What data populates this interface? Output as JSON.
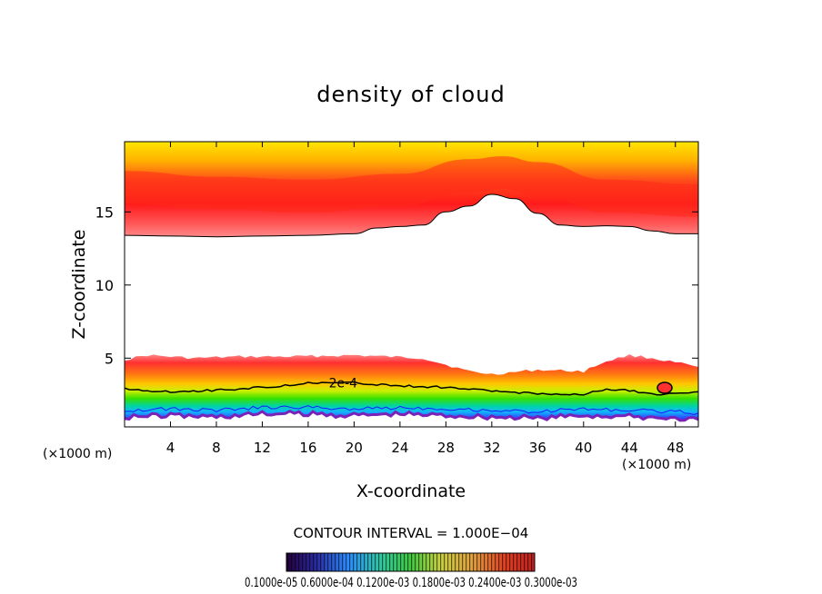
{
  "chart_data": {
    "type": "filled-contour",
    "title": "density of cloud",
    "xlabel": "X-coordinate",
    "ylabel": "Z-coordinate",
    "x_unit_left": "(×1000 m)",
    "x_unit_right": "(×1000 m)",
    "xlim": [
      0,
      50
    ],
    "ylim": [
      0.3,
      19.8
    ],
    "xticks": [
      4,
      8,
      12,
      16,
      20,
      24,
      28,
      32,
      36,
      40,
      44,
      48
    ],
    "yticks": [
      5,
      10,
      15
    ],
    "contour_label": "2e-4",
    "contour_label_pos": [
      17.8,
      3.0
    ],
    "contour_interval_text": "CONTOUR INTERVAL = 1.000E−04",
    "colorbar_labels_text": "0.1000e-05 0.6000e-04 0.1200e-03 0.1800e-03 0.2400e-03 0.3000e-03",
    "upper_cloud_base": [
      [
        0,
        13.4
      ],
      [
        4,
        13.35
      ],
      [
        8,
        13.3
      ],
      [
        12,
        13.35
      ],
      [
        16,
        13.4
      ],
      [
        20,
        13.5
      ],
      [
        22,
        13.9
      ],
      [
        24,
        14.0
      ],
      [
        26,
        14.1
      ],
      [
        28,
        15.0
      ],
      [
        30,
        15.4
      ],
      [
        32,
        16.2
      ],
      [
        34,
        15.9
      ],
      [
        36,
        14.9
      ],
      [
        38,
        14.1
      ],
      [
        40,
        14.0
      ],
      [
        42,
        14.05
      ],
      [
        44,
        14.0
      ],
      [
        46,
        13.7
      ],
      [
        48,
        13.5
      ],
      [
        50,
        13.5
      ]
    ],
    "upper_cloud_peak": [
      [
        0,
        17.8
      ],
      [
        8,
        17.4
      ],
      [
        16,
        17.2
      ],
      [
        24,
        17.6
      ],
      [
        30,
        18.6
      ],
      [
        33,
        18.8
      ],
      [
        36,
        18.4
      ],
      [
        42,
        17.2
      ],
      [
        50,
        16.9
      ]
    ],
    "lower_cloud_top": [
      [
        0,
        4.9
      ],
      [
        2,
        5.2
      ],
      [
        6,
        5.0
      ],
      [
        10,
        5.1
      ],
      [
        14,
        5.1
      ],
      [
        20,
        5.2
      ],
      [
        26,
        5.0
      ],
      [
        30,
        4.1
      ],
      [
        32,
        3.9
      ],
      [
        36,
        4.2
      ],
      [
        40,
        4.1
      ],
      [
        42,
        4.8
      ],
      [
        44,
        5.2
      ],
      [
        46,
        5.0
      ],
      [
        50,
        4.4
      ]
    ],
    "contour_2e4": [
      [
        0,
        2.9
      ],
      [
        4,
        2.7
      ],
      [
        8,
        2.8
      ],
      [
        12,
        3.0
      ],
      [
        16,
        3.3
      ],
      [
        20,
        3.3
      ],
      [
        24,
        3.1
      ],
      [
        28,
        3.0
      ],
      [
        32,
        2.75
      ],
      [
        36,
        2.6
      ],
      [
        40,
        2.5
      ],
      [
        42,
        2.9
      ],
      [
        44,
        2.8
      ],
      [
        46,
        2.5
      ],
      [
        50,
        2.7
      ]
    ],
    "lower_cloud_base": [
      [
        0,
        1.0
      ],
      [
        4,
        1.1
      ],
      [
        8,
        1.0
      ],
      [
        12,
        1.2
      ],
      [
        16,
        1.2
      ],
      [
        20,
        1.1
      ],
      [
        24,
        1.2
      ],
      [
        28,
        1.1
      ],
      [
        32,
        1.0
      ],
      [
        36,
        0.9
      ],
      [
        40,
        1.1
      ],
      [
        44,
        1.0
      ],
      [
        48,
        0.9
      ],
      [
        50,
        0.8
      ]
    ]
  }
}
